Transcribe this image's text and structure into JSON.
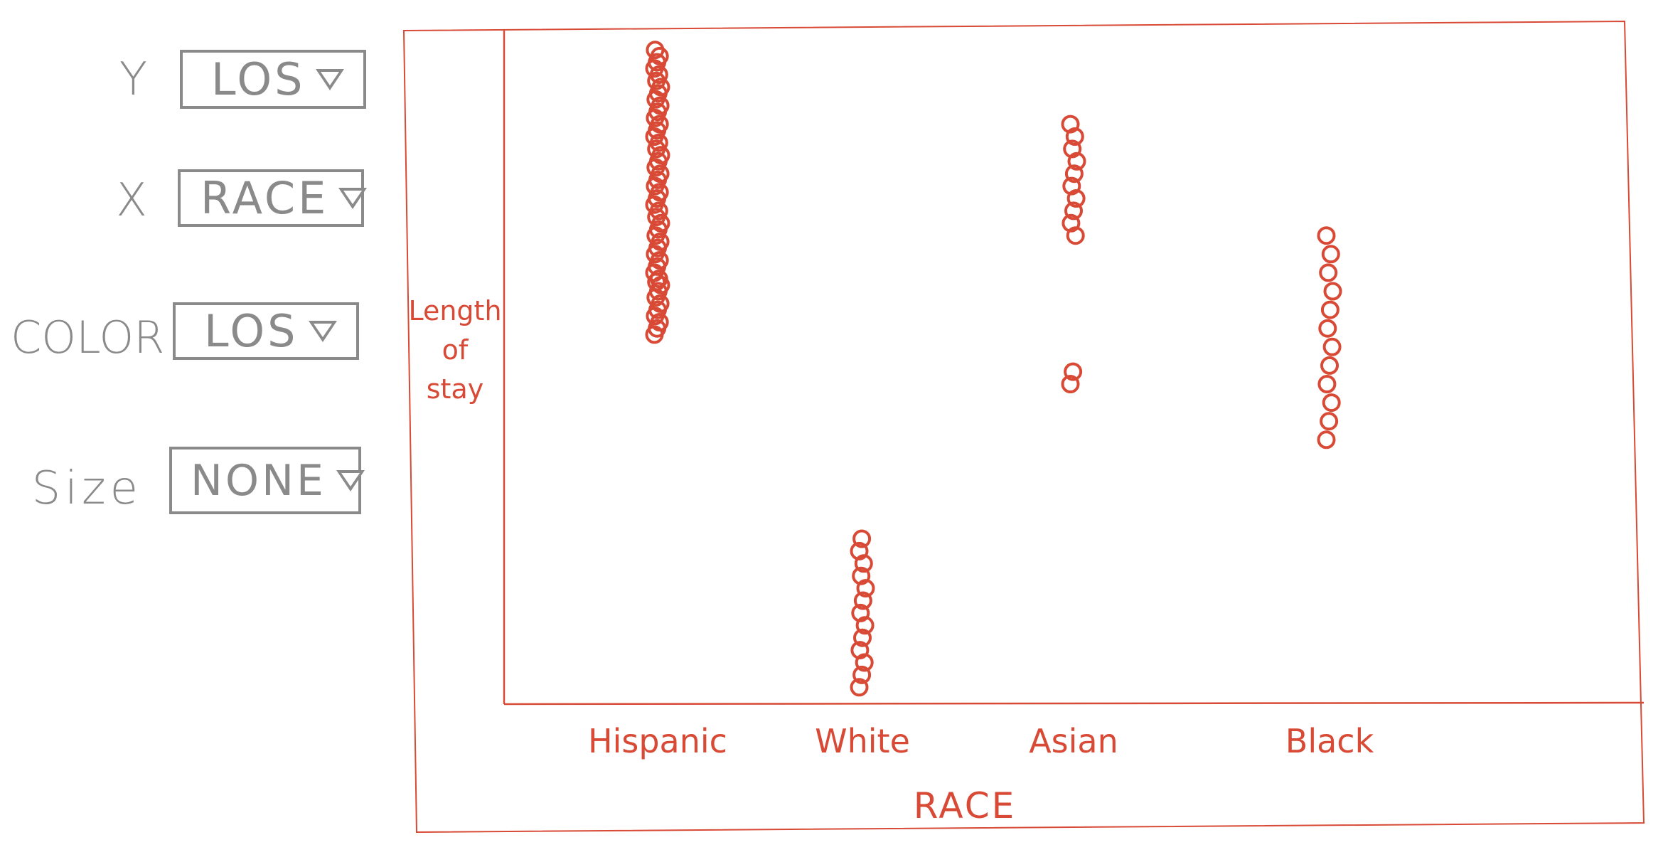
{
  "controls": {
    "y": {
      "label": "Y",
      "value": "LOS"
    },
    "x": {
      "label": "X",
      "value": "RACE"
    },
    "color": {
      "label": "COLOR",
      "value": "LOS"
    },
    "size": {
      "label": "Size",
      "value": "NONE"
    }
  },
  "accent_color": "#d84a35",
  "control_color": "#8a8a8a",
  "chart_data": {
    "type": "scatter",
    "xlabel": "RACE",
    "ylabel": [
      "Length",
      "of",
      "stay"
    ],
    "categories": [
      "Hispanic",
      "White",
      "Asian",
      "Black"
    ],
    "grid": false,
    "legend": "none",
    "ylim": [
      0,
      100
    ],
    "series": [
      {
        "values": [
          {
            "x": "Hispanic",
            "y": [
              58,
              59,
              60,
              61,
              62,
              63,
              64,
              65,
              66,
              66.5,
              67,
              68,
              69,
              70,
              71,
              72,
              73,
              74,
              75,
              76,
              77,
              78,
              79,
              80,
              81,
              82,
              83,
              84,
              85,
              86,
              87,
              88,
              89,
              90,
              91,
              92,
              93,
              94,
              95,
              96,
              97,
              98,
              99,
              100,
              101,
              102,
              103,
              104
            ]
          },
          {
            "x": "White",
            "y": [
              1,
              3,
              5,
              7,
              9,
              11,
              13,
              15,
              17,
              19,
              21,
              23,
              25
            ]
          },
          {
            "x": "Asian",
            "y": [
              50,
              52,
              74,
              76,
              78,
              80,
              82,
              84,
              86,
              88,
              90,
              92
            ]
          },
          {
            "x": "Black",
            "y": [
              41,
              44,
              47,
              50,
              53,
              56,
              59,
              62,
              65,
              68,
              71,
              74
            ]
          }
        ]
      }
    ]
  }
}
